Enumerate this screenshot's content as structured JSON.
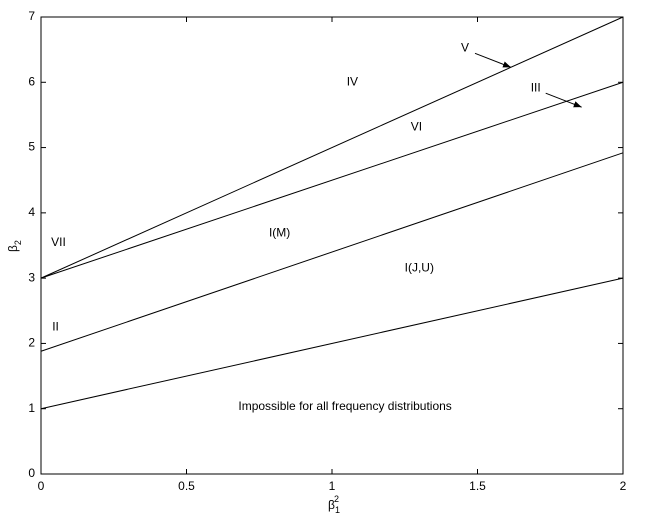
{
  "chart_data": {
    "type": "line",
    "xlabel": {
      "symbol": "β",
      "sub": "1",
      "sup": "2"
    },
    "ylabel": {
      "symbol": "β",
      "sub": "2"
    },
    "xlim": [
      0,
      2
    ],
    "ylim": [
      0,
      7
    ],
    "xticks": [
      0,
      0.5,
      1,
      1.5,
      2
    ],
    "yticks": [
      0,
      1,
      2,
      3,
      4,
      5,
      6,
      7
    ],
    "color": "#000000",
    "series": [
      {
        "x": [
          0,
          2
        ],
        "values": [
          1,
          3
        ]
      },
      {
        "x": [
          0,
          2
        ],
        "values": [
          1.88,
          4.92
        ]
      },
      {
        "x": [
          0,
          2
        ],
        "values": [
          3,
          6
        ]
      },
      {
        "x": [
          0,
          2
        ],
        "values": [
          3,
          7
        ]
      }
    ],
    "annotations": [
      {
        "text": "V",
        "x": 1.457,
        "y": 6.52,
        "arrow": true
      },
      {
        "text": "III",
        "x": 1.7,
        "y": 5.91,
        "arrow": true
      },
      {
        "text": "IV",
        "x": 1.07,
        "y": 6.0
      },
      {
        "text": "VI",
        "x": 1.29,
        "y": 5.31
      },
      {
        "text": "I(M)",
        "x": 0.82,
        "y": 3.69
      },
      {
        "text": "I(J,U)",
        "x": 1.3,
        "y": 3.15
      },
      {
        "text": "VII",
        "x": 0.06,
        "y": 3.54
      },
      {
        "text": "II",
        "x": 0.05,
        "y": 2.25
      },
      {
        "text": "Impossible for all frequency distributions",
        "x": 1.045,
        "y": 1.03
      }
    ]
  }
}
